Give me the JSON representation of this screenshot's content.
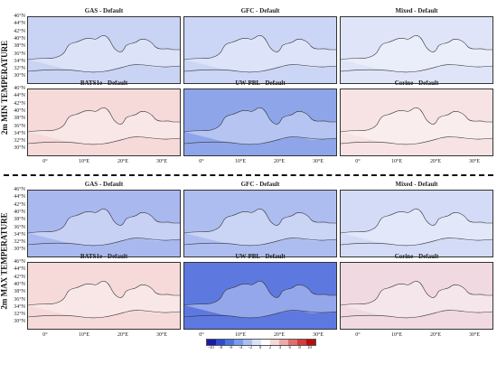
{
  "section_titles": {
    "top": "2m MIN TEMPERATURE",
    "bottom": "2m MAX TEMPERATURE"
  },
  "panel_titles": [
    "GAS - Default",
    "GFC - Default",
    "Mixed - Default",
    "BATS1e - Default",
    "UW-PBL - Default",
    "Corine - Default"
  ],
  "lat_labels": [
    "46°N",
    "44°N",
    "42°N",
    "40°N",
    "38°N",
    "36°N",
    "34°N",
    "32°N",
    "30°N"
  ],
  "lon_labels": [
    "0°",
    "10°E",
    "20°E",
    "30°E"
  ],
  "colorbar": {
    "ticks": [
      "-10",
      "-8",
      "-6",
      "-4",
      "-2",
      "0",
      "2",
      "4",
      "6",
      "8",
      "10"
    ],
    "colors": [
      "#1a1aa8",
      "#2f4ad0",
      "#4f74e0",
      "#7b9ceb",
      "#a9bff3",
      "#d9e2f8",
      "#ffffff",
      "#f8d6d6",
      "#f0a8a8",
      "#e26d6d",
      "#d43b3b",
      "#b80d0d"
    ]
  },
  "panels": [
    {
      "name": "min-gas",
      "tint": "#c9d3f4"
    },
    {
      "name": "min-gfc",
      "tint": "#cbd5f5"
    },
    {
      "name": "min-mixed",
      "tint": "#dfe4f8"
    },
    {
      "name": "min-bats1e",
      "tint": "#f6d9d9"
    },
    {
      "name": "min-uwpbl",
      "tint": "#8ea5ea"
    },
    {
      "name": "min-corine",
      "tint": "#f7e3e3"
    },
    {
      "name": "max-gas",
      "tint": "#a9b8ef"
    },
    {
      "name": "max-gfc",
      "tint": "#aebdf0"
    },
    {
      "name": "max-mixed",
      "tint": "#d3dbf6"
    },
    {
      "name": "max-bats1e",
      "tint": "#f6dada"
    },
    {
      "name": "max-uwpbl",
      "tint": "#5d79e0"
    },
    {
      "name": "max-corine",
      "tint": "#f0d9e0"
    }
  ]
}
